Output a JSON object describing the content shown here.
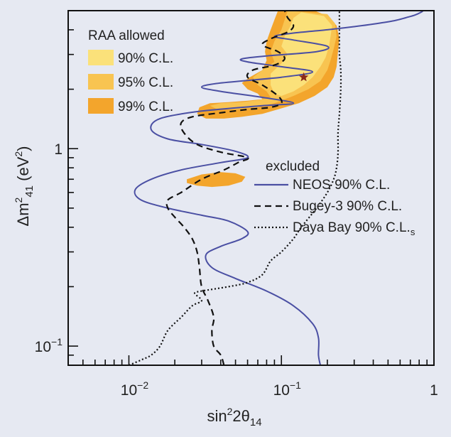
{
  "chart_data": {
    "type": "line",
    "xlabel": "sin²2θ₁₄",
    "ylabel": "Δm²₄₁ (eV²)",
    "xscale": "log",
    "yscale": "log",
    "xlim": [
      0.004,
      1
    ],
    "ylim": [
      0.08,
      5.0
    ],
    "x_ticks": [
      {
        "value": 0.01,
        "mant": "10",
        "exp": "−2"
      },
      {
        "value": 0.1,
        "mant": "10",
        "exp": "−1"
      },
      {
        "value": 1,
        "mant": "1",
        "exp": ""
      }
    ],
    "y_ticks": [
      {
        "value": 0.1,
        "mant": "10",
        "exp": "−1"
      },
      {
        "value": 1,
        "mant": "1",
        "exp": ""
      }
    ],
    "colors": {
      "background": "#e6e9f2",
      "cl90": "#fbe17a",
      "cl95": "#f8c451",
      "cl99": "#f3a52c",
      "neos": "#4a4fa3",
      "bugey": "#111111",
      "dayabay": "#111111",
      "bestfit": "#8b2a1a"
    },
    "legend_allowed": {
      "title": "RAA allowed",
      "entries": [
        "90% C.L.",
        "95% C.L.",
        "99% C.L."
      ]
    },
    "legend_excluded": {
      "title": "excluded",
      "entries": [
        {
          "label": "NEOS 90% C.L.",
          "style": "solid"
        },
        {
          "label": "Bugey-3 90% C.L.",
          "style": "dashed"
        },
        {
          "label": "Daya Bay 90% C.L.",
          "style": "dotted",
          "sub": "s"
        }
      ]
    },
    "best_fit": {
      "x": 0.14,
      "y": 2.3
    },
    "regions": [
      {
        "name": "99% C.L.",
        "polygons": [
          [
            [
              0.165,
              5.0
            ],
            [
              0.2,
              4.7
            ],
            [
              0.23,
              4.2
            ],
            [
              0.24,
              3.6
            ],
            [
              0.235,
              3.1
            ],
            [
              0.23,
              2.6
            ],
            [
              0.22,
              2.3
            ],
            [
              0.2,
              2.05
            ],
            [
              0.165,
              1.85
            ],
            [
              0.13,
              1.7
            ],
            [
              0.1,
              1.6
            ],
            [
              0.075,
              1.5
            ],
            [
              0.055,
              1.45
            ],
            [
              0.042,
              1.42
            ],
            [
              0.032,
              1.42
            ],
            [
              0.028,
              1.5
            ],
            [
              0.029,
              1.62
            ],
            [
              0.034,
              1.7
            ],
            [
              0.045,
              1.72
            ],
            [
              0.06,
              1.75
            ],
            [
              0.075,
              1.78
            ],
            [
              0.07,
              1.9
            ],
            [
              0.06,
              2.0
            ],
            [
              0.055,
              2.15
            ],
            [
              0.062,
              2.3
            ],
            [
              0.075,
              2.5
            ],
            [
              0.08,
              2.8
            ],
            [
              0.078,
              3.1
            ],
            [
              0.08,
              3.5
            ],
            [
              0.085,
              4.0
            ],
            [
              0.09,
              4.5
            ],
            [
              0.095,
              5.0
            ]
          ],
          [
            [
              0.024,
              0.7
            ],
            [
              0.03,
              0.74
            ],
            [
              0.04,
              0.76
            ],
            [
              0.05,
              0.75
            ],
            [
              0.058,
              0.72
            ],
            [
              0.055,
              0.68
            ],
            [
              0.045,
              0.65
            ],
            [
              0.035,
              0.64
            ],
            [
              0.028,
              0.65
            ],
            [
              0.024,
              0.67
            ]
          ]
        ]
      },
      {
        "name": "95% C.L.",
        "polygons": [
          [
            [
              0.11,
              5.0
            ],
            [
              0.2,
              4.8
            ],
            [
              0.225,
              4.3
            ],
            [
              0.23,
              3.7
            ],
            [
              0.22,
              3.2
            ],
            [
              0.21,
              2.8
            ],
            [
              0.2,
              2.5
            ],
            [
              0.18,
              2.2
            ],
            [
              0.15,
              2.0
            ],
            [
              0.12,
              1.85
            ],
            [
              0.09,
              1.7
            ],
            [
              0.07,
              1.62
            ],
            [
              0.05,
              1.58
            ],
            [
              0.038,
              1.58
            ],
            [
              0.034,
              1.65
            ],
            [
              0.04,
              1.7
            ],
            [
              0.055,
              1.72
            ],
            [
              0.07,
              1.76
            ],
            [
              0.085,
              1.82
            ],
            [
              0.08,
              1.95
            ],
            [
              0.07,
              2.1
            ],
            [
              0.065,
              2.3
            ],
            [
              0.075,
              2.5
            ],
            [
              0.09,
              2.75
            ],
            [
              0.085,
              3.1
            ],
            [
              0.09,
              3.5
            ],
            [
              0.1,
              4.0
            ],
            [
              0.105,
              4.5
            ]
          ]
        ]
      },
      {
        "name": "90% C.L.",
        "polygons": [
          [
            [
              0.135,
              4.9
            ],
            [
              0.19,
              4.7
            ],
            [
              0.215,
              4.2
            ],
            [
              0.21,
              3.7
            ],
            [
              0.205,
              3.3
            ],
            [
              0.195,
              2.9
            ],
            [
              0.18,
              2.6
            ],
            [
              0.16,
              2.3
            ],
            [
              0.14,
              2.1
            ],
            [
              0.12,
              1.95
            ],
            [
              0.1,
              1.85
            ],
            [
              0.09,
              1.9
            ],
            [
              0.085,
              2.1
            ],
            [
              0.085,
              2.4
            ],
            [
              0.1,
              2.7
            ],
            [
              0.11,
              3.0
            ],
            [
              0.1,
              3.3
            ],
            [
              0.105,
              3.7
            ],
            [
              0.115,
              4.2
            ],
            [
              0.12,
              4.6
            ]
          ]
        ]
      }
    ],
    "series": [
      {
        "name": "NEOS 90% C.L.",
        "style": "solid",
        "points": [
          [
            0.18,
            0.08
          ],
          [
            0.175,
            0.09
          ],
          [
            0.175,
            0.11
          ],
          [
            0.16,
            0.13
          ],
          [
            0.12,
            0.16
          ],
          [
            0.08,
            0.19
          ],
          [
            0.05,
            0.22
          ],
          [
            0.035,
            0.25
          ],
          [
            0.032,
            0.29
          ],
          [
            0.04,
            0.32
          ],
          [
            0.055,
            0.35
          ],
          [
            0.06,
            0.38
          ],
          [
            0.045,
            0.43
          ],
          [
            0.03,
            0.46
          ],
          [
            0.018,
            0.5
          ],
          [
            0.012,
            0.55
          ],
          [
            0.011,
            0.62
          ],
          [
            0.014,
            0.7
          ],
          [
            0.022,
            0.78
          ],
          [
            0.04,
            0.85
          ],
          [
            0.06,
            0.9
          ],
          [
            0.05,
            0.97
          ],
          [
            0.03,
            1.05
          ],
          [
            0.018,
            1.12
          ],
          [
            0.014,
            1.25
          ],
          [
            0.016,
            1.42
          ],
          [
            0.03,
            1.55
          ],
          [
            0.075,
            1.65
          ],
          [
            0.12,
            1.7
          ],
          [
            0.075,
            1.82
          ],
          [
            0.04,
            1.95
          ],
          [
            0.03,
            2.05
          ],
          [
            0.04,
            2.15
          ],
          [
            0.1,
            2.3
          ],
          [
            0.16,
            2.45
          ],
          [
            0.1,
            2.6
          ],
          [
            0.06,
            2.75
          ],
          [
            0.055,
            2.85
          ],
          [
            0.08,
            2.95
          ],
          [
            0.17,
            3.1
          ],
          [
            0.2,
            3.3
          ],
          [
            0.12,
            3.55
          ],
          [
            0.09,
            3.7
          ],
          [
            0.12,
            3.85
          ],
          [
            0.2,
            4.0
          ],
          [
            0.3,
            4.15
          ],
          [
            0.42,
            4.3
          ],
          [
            0.55,
            4.45
          ],
          [
            0.65,
            4.6
          ],
          [
            0.75,
            4.75
          ],
          [
            0.82,
            4.9
          ],
          [
            0.85,
            5.0
          ]
        ]
      },
      {
        "name": "Bugey-3 90% C.L.",
        "style": "dashed",
        "points": [
          [
            0.042,
            0.08
          ],
          [
            0.04,
            0.09
          ],
          [
            0.036,
            0.1
          ],
          [
            0.035,
            0.12
          ],
          [
            0.036,
            0.14
          ],
          [
            0.033,
            0.17
          ],
          [
            0.03,
            0.2
          ],
          [
            0.029,
            0.25
          ],
          [
            0.028,
            0.3
          ],
          [
            0.026,
            0.35
          ],
          [
            0.023,
            0.4
          ],
          [
            0.02,
            0.45
          ],
          [
            0.018,
            0.5
          ],
          [
            0.018,
            0.55
          ],
          [
            0.022,
            0.6
          ],
          [
            0.03,
            0.7
          ],
          [
            0.042,
            0.78
          ],
          [
            0.052,
            0.85
          ],
          [
            0.06,
            0.9
          ],
          [
            0.04,
            0.96
          ],
          [
            0.028,
            1.05
          ],
          [
            0.023,
            1.2
          ],
          [
            0.022,
            1.35
          ],
          [
            0.026,
            1.45
          ],
          [
            0.04,
            1.52
          ],
          [
            0.06,
            1.58
          ],
          [
            0.085,
            1.62
          ],
          [
            0.1,
            1.7
          ],
          [
            0.095,
            1.85
          ],
          [
            0.075,
            2.1
          ],
          [
            0.06,
            2.3
          ],
          [
            0.065,
            2.5
          ],
          [
            0.09,
            2.65
          ],
          [
            0.105,
            2.85
          ],
          [
            0.095,
            3.1
          ],
          [
            0.075,
            3.35
          ],
          [
            0.085,
            3.6
          ],
          [
            0.11,
            3.9
          ],
          [
            0.12,
            4.2
          ],
          [
            0.11,
            4.6
          ],
          [
            0.105,
            5.0
          ]
        ]
      },
      {
        "name": "Daya Bay 90% C.L.s",
        "style": "dotted",
        "points": [
          [
            0.01,
            0.08
          ],
          [
            0.012,
            0.085
          ],
          [
            0.014,
            0.09
          ],
          [
            0.016,
            0.1
          ],
          [
            0.018,
            0.12
          ],
          [
            0.022,
            0.14
          ],
          [
            0.026,
            0.16
          ],
          [
            0.03,
            0.17
          ],
          [
            0.027,
            0.185
          ],
          [
            0.03,
            0.19
          ],
          [
            0.045,
            0.2
          ],
          [
            0.06,
            0.21
          ],
          [
            0.075,
            0.23
          ],
          [
            0.085,
            0.27
          ],
          [
            0.1,
            0.3
          ],
          [
            0.12,
            0.35
          ],
          [
            0.135,
            0.4
          ],
          [
            0.17,
            0.5
          ],
          [
            0.2,
            0.6
          ],
          [
            0.22,
            0.7
          ],
          [
            0.23,
            0.8
          ],
          [
            0.235,
            0.95
          ],
          [
            0.235,
            1.2
          ],
          [
            0.24,
            1.5
          ],
          [
            0.245,
            2.0
          ],
          [
            0.245,
            2.5
          ],
          [
            0.24,
            3.0
          ],
          [
            0.24,
            4.0
          ],
          [
            0.24,
            5.0
          ]
        ]
      }
    ]
  }
}
